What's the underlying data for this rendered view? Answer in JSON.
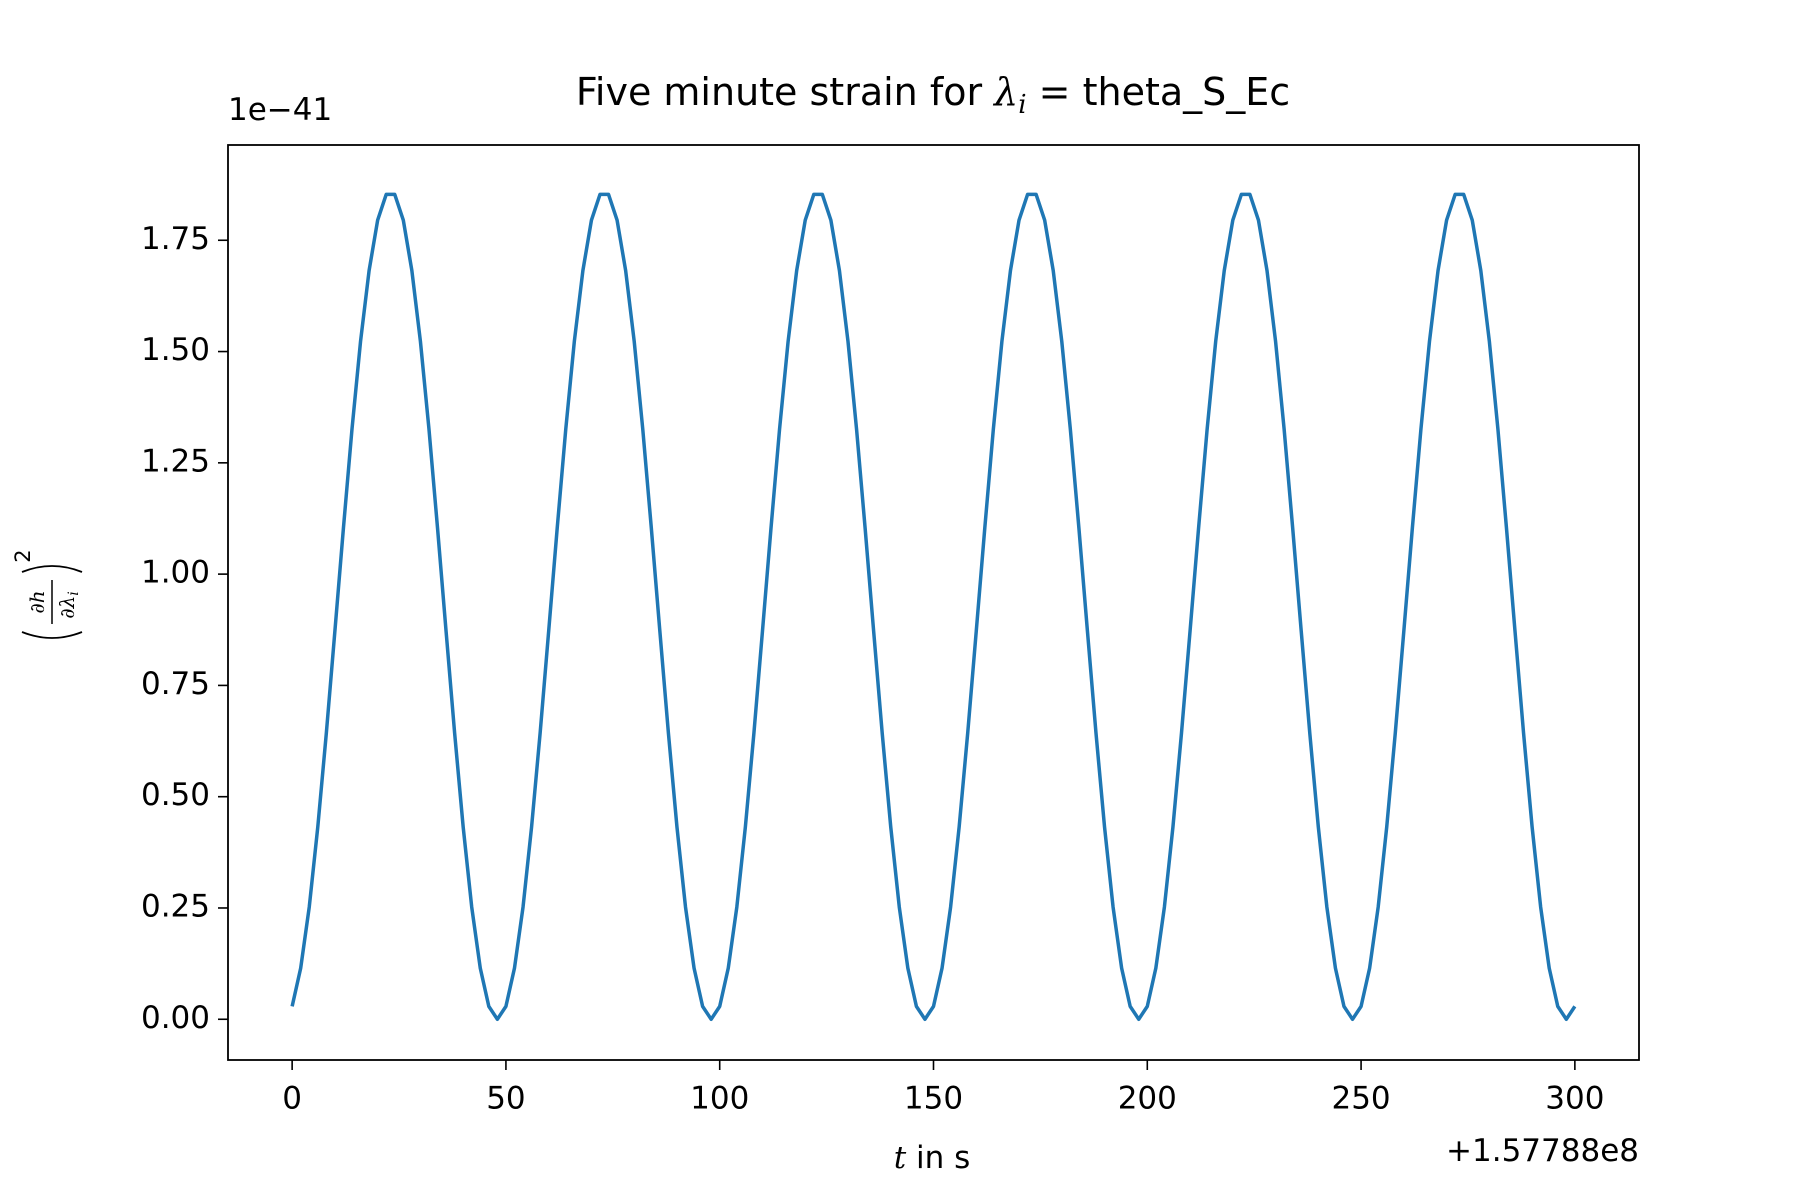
{
  "chart_data": {
    "type": "line",
    "title": {
      "prefix": "Five minute strain for ",
      "symbol": "λ",
      "subscript": "i",
      "suffix": " = theta_S_Ec"
    },
    "xlabel": {
      "var": "t",
      "text": " in s"
    },
    "ylabel": {
      "numerator": "∂h",
      "denominator": "∂λ",
      "denominator_subscript": "i",
      "exponent": "2"
    },
    "y_offset": "1e−41",
    "x_offset": "+1.57788e8",
    "color": "#1f77b4",
    "xlim": [
      -15,
      315
    ],
    "ylim": [
      -0.0915,
      1.964
    ],
    "xticks": [
      0,
      50,
      100,
      150,
      200,
      250,
      300
    ],
    "yticks": [
      {
        "value": 0,
        "label": "0.00"
      },
      {
        "value": 0.25,
        "label": "0.25"
      },
      {
        "value": 0.5,
        "label": "0.50"
      },
      {
        "value": 0.75,
        "label": "0.75"
      },
      {
        "value": 1,
        "label": "1.00"
      },
      {
        "value": 1.25,
        "label": "1.25"
      },
      {
        "value": 1.5,
        "label": "1.50"
      },
      {
        "value": 1.75,
        "label": "1.75"
      }
    ],
    "x": [
      0,
      2,
      4,
      6,
      8,
      10,
      12,
      14,
      16,
      18,
      20,
      22,
      24,
      26,
      28,
      30,
      32,
      34,
      36,
      38,
      40,
      42,
      44,
      46,
      48,
      50,
      52,
      54,
      56,
      58,
      60,
      62,
      64,
      66,
      68,
      70,
      72,
      74,
      76,
      78,
      80,
      82,
      84,
      86,
      88,
      90,
      92,
      94,
      96,
      98,
      100,
      102,
      104,
      106,
      108,
      110,
      112,
      114,
      116,
      118,
      120,
      122,
      124,
      126,
      128,
      130,
      132,
      134,
      136,
      138,
      140,
      142,
      144,
      146,
      148,
      150,
      152,
      154,
      156,
      158,
      160,
      162,
      164,
      166,
      168,
      170,
      172,
      174,
      176,
      178,
      180,
      182,
      184,
      186,
      188,
      190,
      192,
      194,
      196,
      198,
      200,
      202,
      204,
      206,
      208,
      210,
      212,
      214,
      216,
      218,
      220,
      222,
      224,
      226,
      228,
      230,
      232,
      234,
      236,
      238,
      240,
      242,
      244,
      246,
      248,
      250,
      252,
      254,
      256,
      258,
      260,
      262,
      264,
      266,
      268,
      270,
      272,
      274,
      276,
      278,
      280,
      282,
      284,
      286,
      288,
      290,
      292,
      294,
      296,
      298,
      300
    ],
    "values": [
      0.029,
      0.115,
      0.252,
      0.432,
      0.643,
      0.872,
      1.104,
      1.326,
      1.523,
      1.682,
      1.795,
      1.853,
      1.853,
      1.795,
      1.682,
      1.523,
      1.326,
      1.104,
      0.872,
      0.643,
      0.432,
      0.252,
      0.115,
      0.029,
      0,
      0.029,
      0.115,
      0.252,
      0.432,
      0.643,
      0.872,
      1.104,
      1.326,
      1.523,
      1.682,
      1.795,
      1.853,
      1.853,
      1.795,
      1.682,
      1.523,
      1.326,
      1.104,
      0.872,
      0.643,
      0.432,
      0.252,
      0.115,
      0.029,
      0,
      0.029,
      0.115,
      0.252,
      0.432,
      0.643,
      0.872,
      1.104,
      1.326,
      1.523,
      1.682,
      1.795,
      1.853,
      1.853,
      1.795,
      1.682,
      1.523,
      1.326,
      1.104,
      0.872,
      0.643,
      0.432,
      0.252,
      0.115,
      0.029,
      0,
      0.029,
      0.115,
      0.252,
      0.432,
      0.643,
      0.872,
      1.104,
      1.326,
      1.523,
      1.682,
      1.795,
      1.853,
      1.853,
      1.795,
      1.682,
      1.523,
      1.326,
      1.104,
      0.872,
      0.643,
      0.432,
      0.252,
      0.115,
      0.029,
      0,
      0.029,
      0.115,
      0.252,
      0.432,
      0.643,
      0.872,
      1.104,
      1.326,
      1.523,
      1.682,
      1.795,
      1.853,
      1.853,
      1.795,
      1.682,
      1.523,
      1.326,
      1.104,
      0.872,
      0.643,
      0.432,
      0.252,
      0.115,
      0.029,
      0,
      0.029,
      0.115,
      0.252,
      0.432,
      0.643,
      0.872,
      1.104,
      1.326,
      1.523,
      1.682,
      1.795,
      1.853,
      1.853,
      1.795,
      1.682,
      1.523,
      1.326,
      1.104,
      0.872,
      0.643,
      0.432,
      0.252,
      0.115,
      0.029,
      0,
      0.029
    ]
  }
}
